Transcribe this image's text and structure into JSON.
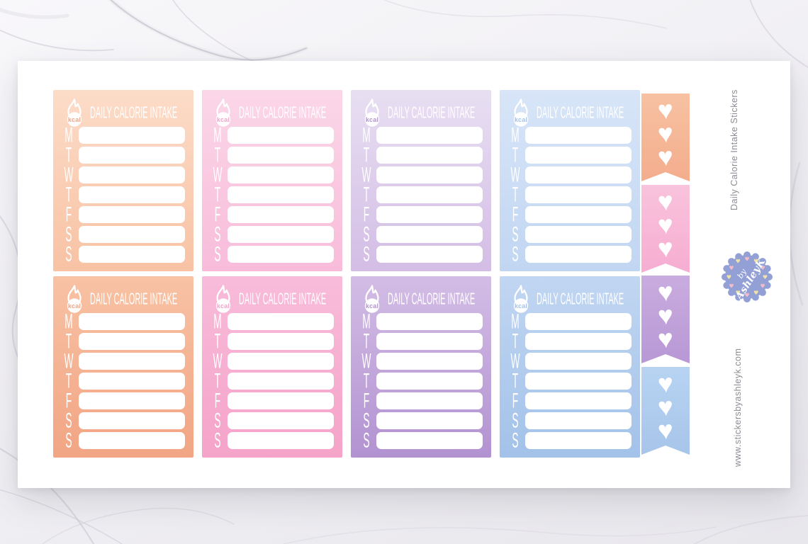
{
  "product_mockup": {
    "side_label": "Daily Calorie Intake Stickers",
    "website": "www.stickersbyashleyk.com",
    "badge": {
      "prefix": "by",
      "name": "AshleyK"
    }
  },
  "sticker_box": {
    "title": "DAILY CALORIE INTAKE",
    "icon": "kcal-flame-icon",
    "icon_label": "kcal",
    "day_labels": [
      "M",
      "T",
      "W",
      "T",
      "F",
      "S",
      "S"
    ],
    "entry_rows_per_box": 7
  },
  "sheet": {
    "row_count": 2,
    "column_colors": [
      "peach",
      "pink",
      "purple",
      "blue"
    ],
    "flag_colors": [
      "peach",
      "pink",
      "purple",
      "blue"
    ]
  },
  "flags": {
    "icon": "heart-icon",
    "heart_glyph": "♥",
    "hearts_per_flag": 3
  },
  "palette": {
    "peach": {
      "light": "#fcdcc8",
      "mid": "#f8c2a4",
      "dark": "#f1a584",
      "flagtop": "#f7c2a2",
      "flagbot": "#f3ad8d"
    },
    "pink": {
      "light": "#fbd7e8",
      "mid": "#f8bcda",
      "dark": "#f5a3c9",
      "flagtop": "#f9c3dd",
      "flagbot": "#f6add1"
    },
    "purple": {
      "light": "#e8dff2",
      "mid": "#d3bde5",
      "dark": "#b292d1",
      "flagtop": "#c9acdf",
      "flagbot": "#b898d5"
    },
    "blue": {
      "light": "#d8e5f8",
      "mid": "#c1d6f2",
      "dark": "#a3c2e9",
      "flagtop": "#b8d3f2",
      "flagbot": "#a7c5ea"
    },
    "badge": {
      "base": "#93a0d6",
      "heartpink": "#f4bccb",
      "heartyellow": "#f1e3a6"
    },
    "side_text": "#8d8c94"
  }
}
